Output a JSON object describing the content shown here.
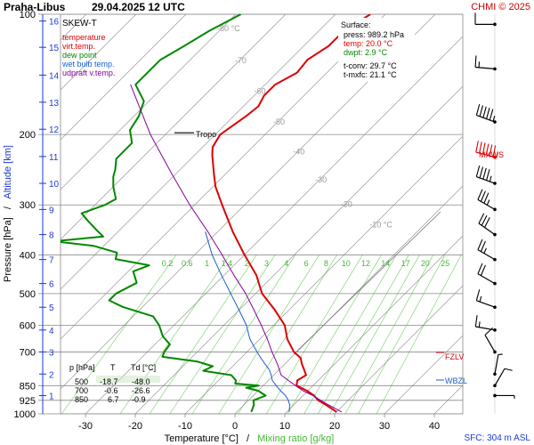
{
  "header": {
    "station": "Praha-Libus",
    "datetime": "29.04.2025 12 UTC",
    "credit": "CHMI © 2025"
  },
  "colors": {
    "temperature": "#dd0000",
    "virt_temp": "#dd0000",
    "dew_point": "#008800",
    "wet_bulb": "#1a5fd0",
    "updraft": "#880099",
    "mixing_ratio": "#44bb33",
    "isotherm": "#999999",
    "pressure_line": "#888888",
    "altitude_axis": "#1a3ad0"
  },
  "legend": {
    "title": "SKEW-T",
    "items": [
      {
        "label": "temperature",
        "color": "#dd0000"
      },
      {
        "label": "virt.temp.",
        "color": "#dd0000"
      },
      {
        "label": "dew point",
        "color": "#008800"
      },
      {
        "label": "wet bulb temp.",
        "color": "#1a5fd0"
      },
      {
        "label": "udpraft v.temp.",
        "color": "#880099"
      }
    ]
  },
  "surface": {
    "title": "Surface:",
    "lines": [
      {
        "text": "press: 989.2 hPa",
        "color": "#000000"
      },
      {
        "text": "temp: 20.0 °C",
        "color": "#dd0000"
      },
      {
        "text": "dwpt: 2.9 °C",
        "color": "#008800"
      }
    ],
    "extra": [
      "t-conv: 29.7 °C",
      "t-mxfc: 21.1 °C"
    ]
  },
  "table": {
    "header": {
      "p": "p [hPa]",
      "t": "T",
      "td": "Td [°C]"
    },
    "rows": [
      {
        "p": "500",
        "t": "-18.7",
        "td": "-48.0"
      },
      {
        "p": "700",
        "t": "-0.6",
        "td": "-26.6"
      },
      {
        "p": "850",
        "t": "6.7",
        "td": "-0.9"
      }
    ]
  },
  "annotations": {
    "tropo": "Tropo",
    "mxws": "MXWS",
    "fzlv": "FZLV",
    "wbzl": "WBZL",
    "sfc": "SFC: 304 m ASL"
  },
  "chart_data": {
    "type": "line",
    "xlabel": "Temperature [°C]",
    "xlabel_sep": "/",
    "xlabel2": "Mixing ratio [g/kg]",
    "ylabel": "Pressure [hPa]",
    "ylabel_sep": "/",
    "ylabel2": "Altitude [km]",
    "xlim": [
      -35,
      45
    ],
    "ylim": [
      1000,
      100
    ],
    "x_ticks": [
      -30,
      -20,
      -10,
      0,
      10,
      20,
      30,
      40
    ],
    "pressure_ticks": [
      100,
      200,
      300,
      400,
      500,
      600,
      700,
      850,
      925,
      1000
    ],
    "altitude_ticks": [
      {
        "km": 1,
        "p": 900
      },
      {
        "km": 2,
        "p": 795
      },
      {
        "km": 3,
        "p": 700
      },
      {
        "km": 4,
        "p": 617
      },
      {
        "km": 5,
        "p": 541
      },
      {
        "km": 6,
        "p": 472
      },
      {
        "km": 7,
        "p": 411
      },
      {
        "km": 8,
        "p": 356
      },
      {
        "km": 9,
        "p": 308
      },
      {
        "km": 10,
        "p": 265
      },
      {
        "km": 11,
        "p": 227
      },
      {
        "km": 12,
        "p": 194
      },
      {
        "km": 13,
        "p": 166
      },
      {
        "km": 14,
        "p": 142
      },
      {
        "km": 15,
        "p": 121
      },
      {
        "km": 16,
        "p": 104
      }
    ],
    "isotherm_labels": [
      {
        "t": -80,
        "label": "-80 °C",
        "p": 108
      },
      {
        "t": -70,
        "label": "-70",
        "p": 130
      },
      {
        "t": -60,
        "label": "-60",
        "p": 155
      },
      {
        "t": -50,
        "label": "-50",
        "p": 185
      },
      {
        "t": -40,
        "label": "-40",
        "p": 220
      },
      {
        "t": -30,
        "label": "-30",
        "p": 258
      },
      {
        "t": -20,
        "label": "-20",
        "p": 297
      },
      {
        "t": -10,
        "label": "-10 °C",
        "p": 335
      }
    ],
    "mixing_ratio_labels": [
      "0.2",
      "0.6",
      "1",
      "1.4",
      "2",
      "3",
      "4",
      "6",
      "8",
      "10",
      "12",
      "14",
      "17",
      "20",
      "25"
    ],
    "mixing_ratio_values": [
      0.2,
      0.6,
      1,
      1.4,
      2,
      3,
      4,
      6,
      8,
      10,
      12,
      14,
      17,
      20,
      25
    ],
    "series": [
      {
        "name": "temperature",
        "color": "#dd0000",
        "points": [
          [
            989,
            20.0
          ],
          [
            950,
            16.5
          ],
          [
            925,
            14.0
          ],
          [
            900,
            12.2
          ],
          [
            875,
            9.8
          ],
          [
            850,
            6.7
          ],
          [
            825,
            5.8
          ],
          [
            800,
            6.5
          ],
          [
            775,
            5.0
          ],
          [
            750,
            3.4
          ],
          [
            725,
            2.0
          ],
          [
            700,
            -0.6
          ],
          [
            650,
            -4.5
          ],
          [
            600,
            -7.8
          ],
          [
            550,
            -12.8
          ],
          [
            500,
            -18.7
          ],
          [
            450,
            -23.5
          ],
          [
            400,
            -30.0
          ],
          [
            350,
            -37.0
          ],
          [
            300,
            -44.5
          ],
          [
            270,
            -49.5
          ],
          [
            250,
            -52.5
          ],
          [
            225,
            -56.5
          ],
          [
            215,
            -58.0
          ],
          [
            200,
            -59.0
          ],
          [
            180,
            -57.5
          ],
          [
            170,
            -57.0
          ],
          [
            160,
            -58.0
          ],
          [
            150,
            -58.0
          ],
          [
            140,
            -56.0
          ],
          [
            130,
            -56.5
          ],
          [
            120,
            -55.0
          ],
          [
            110,
            -55.0
          ],
          [
            100,
            -53.0
          ]
        ]
      },
      {
        "name": "dew point",
        "color": "#008800",
        "points": [
          [
            989,
            2.9
          ],
          [
            950,
            2.0
          ],
          [
            925,
            1.0
          ],
          [
            900,
            2.5
          ],
          [
            875,
            0.0
          ],
          [
            860,
            -3.0
          ],
          [
            850,
            -0.9
          ],
          [
            840,
            -6.0
          ],
          [
            825,
            -6.5
          ],
          [
            800,
            -8.5
          ],
          [
            780,
            -15.0
          ],
          [
            760,
            -14.0
          ],
          [
            740,
            -18.0
          ],
          [
            720,
            -26.0
          ],
          [
            700,
            -26.6
          ],
          [
            670,
            -27.0
          ],
          [
            640,
            -30.0
          ],
          [
            600,
            -33.0
          ],
          [
            570,
            -36.0
          ],
          [
            540,
            -44.0
          ],
          [
            520,
            -48.0
          ],
          [
            500,
            -48.0
          ],
          [
            470,
            -46.0
          ],
          [
            440,
            -49.0
          ],
          [
            425,
            -47.0
          ],
          [
            410,
            -55.0
          ],
          [
            395,
            -56.0
          ],
          [
            380,
            -62.0
          ],
          [
            370,
            -71.0
          ],
          [
            360,
            -62.0
          ],
          [
            350,
            -64.0
          ],
          [
            330,
            -68.0
          ],
          [
            315,
            -71.0
          ],
          [
            300,
            -68.0
          ],
          [
            290,
            -67.0
          ],
          [
            270,
            -70.0
          ],
          [
            255,
            -72.0
          ],
          [
            245,
            -73.0
          ],
          [
            230,
            -75.0
          ],
          [
            210,
            -75.0
          ],
          [
            195,
            -78.0
          ],
          [
            180,
            -79.0
          ],
          [
            165,
            -81.0
          ],
          [
            150,
            -86.0
          ],
          [
            140,
            -86.0
          ],
          [
            130,
            -86.0
          ],
          [
            120,
            -84.0
          ],
          [
            110,
            -82.0
          ],
          [
            100,
            -79.0
          ]
        ]
      },
      {
        "name": "wet bulb temp.",
        "color": "#1a5fd0",
        "points": [
          [
            989,
            10.5
          ],
          [
            950,
            9.2
          ],
          [
            925,
            8.0
          ],
          [
            900,
            6.5
          ],
          [
            875,
            4.5
          ],
          [
            850,
            2.6
          ],
          [
            825,
            0.8
          ],
          [
            800,
            -0.5
          ],
          [
            775,
            -2.0
          ],
          [
            750,
            -4.0
          ],
          [
            725,
            -6.0
          ],
          [
            700,
            -8.0
          ],
          [
            650,
            -12.0
          ],
          [
            600,
            -15.5
          ],
          [
            550,
            -20.0
          ],
          [
            500,
            -25.0
          ],
          [
            450,
            -30.5
          ],
          [
            400,
            -36.5
          ],
          [
            350,
            -42.5
          ]
        ]
      },
      {
        "name": "udpraft v.temp.",
        "color": "#880099",
        "points": [
          [
            989,
            21.0
          ],
          [
            950,
            17.0
          ],
          [
            925,
            14.5
          ],
          [
            900,
            12.0
          ],
          [
            875,
            9.0
          ],
          [
            850,
            6.5
          ],
          [
            800,
            1.5
          ],
          [
            750,
            -1.5
          ],
          [
            700,
            -5.0
          ],
          [
            650,
            -8.5
          ],
          [
            600,
            -12.5
          ],
          [
            550,
            -17.0
          ],
          [
            500,
            -22.0
          ],
          [
            450,
            -28.0
          ],
          [
            400,
            -34.5
          ],
          [
            350,
            -42.0
          ],
          [
            300,
            -51.0
          ],
          [
            250,
            -61.0
          ],
          [
            200,
            -73.0
          ],
          [
            150,
            -87.0
          ]
        ]
      }
    ],
    "tropopause_p": 198,
    "mxws_p": 228,
    "fzlv_p": 702,
    "wbzl_p": 823,
    "wind_barbs": [
      {
        "p": 106,
        "dir": 270,
        "kt": 10
      },
      {
        "p": 137,
        "dir": 275,
        "kt": 15
      },
      {
        "p": 186,
        "dir": 290,
        "kt": 55
      },
      {
        "p": 228,
        "dir": 285,
        "kt": 65
      },
      {
        "p": 265,
        "dir": 290,
        "kt": 45
      },
      {
        "p": 308,
        "dir": 300,
        "kt": 35
      },
      {
        "p": 356,
        "dir": 305,
        "kt": 30
      },
      {
        "p": 411,
        "dir": 300,
        "kt": 25
      },
      {
        "p": 472,
        "dir": 300,
        "kt": 20
      },
      {
        "p": 541,
        "dir": 290,
        "kt": 15
      },
      {
        "p": 617,
        "dir": 280,
        "kt": 15
      },
      {
        "p": 700,
        "dir": 330,
        "kt": 10
      },
      {
        "p": 795,
        "dir": 10,
        "kt": 5
      },
      {
        "p": 850,
        "dir": 30,
        "kt": 10
      },
      {
        "p": 900,
        "dir": 90,
        "kt": 5
      }
    ]
  }
}
